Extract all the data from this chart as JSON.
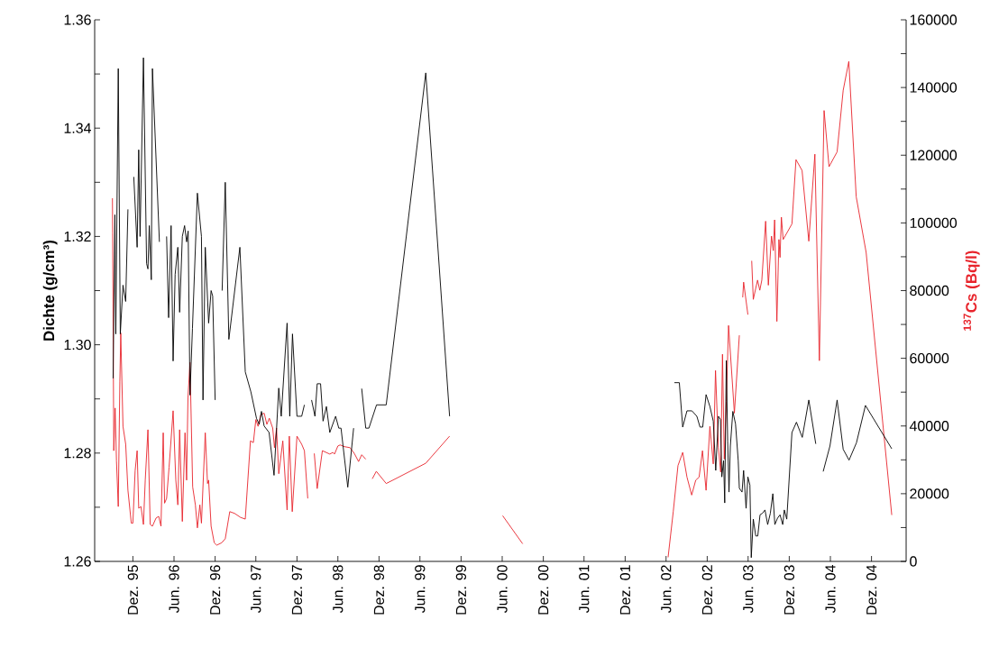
{
  "chart_data": {
    "type": "line",
    "ylabel": "Dichte (g/cm³)",
    "y2label": "$^{137}$Cs (Bq/l)",
    "xlim": [
      "1995-06-14",
      "2005-05-05"
    ],
    "xticks": [
      {
        "value": "1995-12",
        "label": "Dez. 95"
      },
      {
        "value": "1996-06",
        "label": "Jun. 96"
      },
      {
        "value": "1996-12",
        "label": "Dez. 96"
      },
      {
        "value": "1997-06",
        "label": "Jun. 97"
      },
      {
        "value": "1997-12",
        "label": "Dez. 97"
      },
      {
        "value": "1998-06",
        "label": "Jun. 98"
      },
      {
        "value": "1998-12",
        "label": "Dez. 98"
      },
      {
        "value": "1999-06",
        "label": "Jun. 99"
      },
      {
        "value": "1999-12",
        "label": "Dez. 99"
      },
      {
        "value": "2000-06",
        "label": "Jun. 00"
      },
      {
        "value": "2000-12",
        "label": "Dez. 00"
      },
      {
        "value": "2001-06",
        "label": "Jun. 01"
      },
      {
        "value": "2001-12",
        "label": "Dez. 01"
      },
      {
        "value": "2002-06",
        "label": "Jun. 02"
      },
      {
        "value": "2002-12",
        "label": "Dez. 02"
      },
      {
        "value": "2003-06",
        "label": "Jun. 03"
      },
      {
        "value": "2003-12",
        "label": "Dez. 03"
      },
      {
        "value": "2004-06",
        "label": "Jun. 04"
      },
      {
        "value": "2004-12",
        "label": "Dez. 04"
      }
    ],
    "ylim": [
      1.26,
      1.36
    ],
    "yticks": [
      {
        "value": 1.26,
        "label": "1.26"
      },
      {
        "value": 1.27,
        "label": null
      },
      {
        "value": 1.28,
        "label": "1.28"
      },
      {
        "value": 1.29,
        "label": null
      },
      {
        "value": 1.3,
        "label": "1.30"
      },
      {
        "value": 1.31,
        "label": null
      },
      {
        "value": 1.32,
        "label": "1.32"
      },
      {
        "value": 1.33,
        "label": null
      },
      {
        "value": 1.34,
        "label": "1.34"
      },
      {
        "value": 1.35,
        "label": null
      },
      {
        "value": 1.36,
        "label": "1.36"
      }
    ],
    "y2lim": [
      0,
      160000
    ],
    "y2ticks": [
      0,
      {
        "value": 10000,
        "label": null
      },
      20000,
      {
        "value": 30000,
        "label": null
      },
      40000,
      {
        "value": 50000,
        "label": null
      },
      60000,
      {
        "value": 70000,
        "label": null
      },
      80000,
      {
        "value": 90000,
        "label": null
      },
      100000,
      {
        "value": 110000,
        "label": null
      },
      120000,
      {
        "value": 130000,
        "label": null
      },
      140000,
      {
        "value": 150000,
        "label": null
      },
      160000
    ],
    "series": [
      {
        "color": "#000000",
        "x": [
          "1995-09-04",
          "1995-09-12",
          "1995-09-16",
          "1995-09-27",
          "1995-10-06",
          "1995-10-18",
          "1995-10-30",
          "1995-11-09",
          "1995-11-22",
          "1995-12-05",
          "1995-12-20",
          "1995-12-27",
          "1996-01-02",
          "1996-01-17",
          "1996-01-31",
          "1996-02-06",
          "1996-02-12",
          "1996-02-21",
          "1996-02-26",
          "1996-03-28",
          "1996-04-13",
          "1996-04-29",
          "1996-05-08",
          "1996-05-19",
          "1996-05-28",
          "1996-06-06",
          "1996-06-18",
          "1996-06-26",
          "1996-07-08",
          "1996-07-18",
          "1996-07-27",
          "1996-08-03",
          "1996-08-11",
          "1996-08-22",
          "1996-09-13",
          "1996-10-01",
          "1996-10-08",
          "1996-10-18",
          "1996-11-02",
          "1996-11-13",
          "1996-11-20",
          "1996-12-01",
          "1996-12-17",
          "1997-01-02",
          "1997-01-16",
          "1997-02-01",
          "1997-03-22",
          "1997-04-15",
          "1997-05-10",
          "1997-06-04",
          "1997-06-16",
          "1997-06-26",
          "1997-07-08",
          "1997-07-30",
          "1997-08-21",
          "1997-09-11",
          "1997-09-22",
          "1997-10-18",
          "1997-10-30",
          "1997-11-11",
          "1997-12-01",
          "1997-12-22",
          "1998-01-03",
          "1998-01-19",
          "1998-02-04",
          "1998-02-19",
          "1998-03-01",
          "1998-03-16",
          "1998-03-27",
          "1998-04-11",
          "1998-04-26",
          "1998-05-22",
          "1998-06-05",
          "1998-06-15",
          "1998-07-15",
          "1998-08-10",
          "1998-08-26",
          "1998-09-15",
          "1998-10-03",
          "1998-10-17",
          "1998-11-20",
          "1999-01-02",
          "1999-06-27",
          "1999-10-11",
          "2001-01-01",
          "2002-07-08",
          "2002-07-30",
          "2002-08-14",
          "2002-09-02",
          "2002-09-24",
          "2002-10-16",
          "2002-10-30",
          "2002-11-11",
          "2002-11-26",
          "2002-12-13",
          "2002-12-28",
          "2003-01-08",
          "2003-01-20",
          "2003-01-29",
          "2003-02-04",
          "2003-02-12",
          "2003-02-17",
          "2003-02-24",
          "2003-03-02",
          "2003-03-08",
          "2003-03-14",
          "2003-03-25",
          "2003-04-06",
          "2003-04-18",
          "2003-04-23",
          "2003-05-05",
          "2003-05-12",
          "2003-05-23",
          "2003-05-31",
          "2003-06-09",
          "2003-06-15",
          "2003-06-24",
          "2003-07-05",
          "2003-07-14",
          "2003-07-24",
          "2003-08-04",
          "2003-08-15",
          "2003-08-27",
          "2003-09-08",
          "2003-09-19",
          "2003-09-28",
          "2003-10-10",
          "2003-10-21",
          "2003-11-02",
          "2003-11-09",
          "2003-11-20",
          "2003-12-13",
          "2004-01-02",
          "2004-01-28",
          "2004-02-26",
          "2004-03-28",
          "2004-04-13",
          "2004-04-30",
          "2004-05-30",
          "2004-07-01",
          "2004-07-28",
          "2004-08-23",
          "2004-09-25",
          "2004-11-04",
          "2005-03-02"
        ],
        "values": [
          1.2938,
          1.324,
          1.302,
          1.351,
          1.302,
          1.311,
          1.308,
          1.325,
          null,
          1.331,
          1.318,
          1.336,
          1.32,
          1.353,
          1.315,
          1.314,
          1.322,
          1.312,
          1.351,
          1.319,
          null,
          1.32,
          1.305,
          1.322,
          1.297,
          1.313,
          1.318,
          1.306,
          1.32,
          1.322,
          1.319,
          1.321,
          1.2907,
          1.303,
          1.328,
          1.32,
          1.2898,
          1.318,
          1.304,
          1.31,
          1.309,
          1.2898,
          null,
          1.31,
          1.33,
          1.301,
          1.318,
          1.295,
          1.2913,
          1.2864,
          1.2853,
          1.2877,
          1.285,
          1.2838,
          1.2759,
          1.292,
          1.2868,
          1.304,
          1.2868,
          1.302,
          1.2868,
          1.2868,
          1.2889,
          null,
          1.2898,
          1.2868,
          1.2928,
          1.2928,
          1.2859,
          1.2886,
          1.2838,
          1.2868,
          1.2846,
          1.2846,
          1.2737,
          1.2846,
          null,
          1.2919,
          1.2846,
          1.2846,
          1.2889,
          1.2889,
          1.3502,
          1.2868,
          null,
          1.293,
          1.293,
          1.2848,
          1.2878,
          1.2878,
          1.2868,
          1.2848,
          1.2848,
          1.2908,
          1.2886,
          1.2859,
          1.2768,
          1.2868,
          1.2862,
          1.2756,
          1.2786,
          1.2708,
          1.2971,
          1.2822,
          1.2728,
          1.2813,
          1.2877,
          1.2854,
          1.2786,
          1.2735,
          1.2728,
          1.2768,
          1.2698,
          1.2756,
          1.2741,
          1.2607,
          1.2678,
          1.2647,
          1.2647,
          1.2686,
          1.2689,
          1.2695,
          1.2668,
          1.2689,
          1.2725,
          1.2668,
          1.268,
          1.2686,
          1.2668,
          1.2695,
          1.2678,
          1.2838,
          1.2857,
          1.2829,
          1.2898,
          1.2817,
          null,
          1.2766,
          1.2813,
          1.2898,
          1.2807,
          1.2787,
          1.2819,
          1.2888,
          1.2808
        ]
      },
      {
        "color": "#e8242b",
        "axis": "y2",
        "x": [
          "1995-09-01",
          "1995-09-02",
          "1995-09-07",
          "1995-09-13",
          "1995-09-19",
          "1995-09-27",
          "1995-10-04",
          "1995-10-08",
          "1995-10-18",
          "1995-10-30",
          "1995-11-09",
          "1995-11-24",
          "1995-12-01",
          "1995-12-11",
          "1995-12-20",
          "1995-12-27",
          "1996-01-06",
          "1996-01-17",
          "1996-01-25",
          "1996-02-06",
          "1996-02-16",
          "1996-02-26",
          "1996-03-13",
          "1996-03-25",
          "1996-04-04",
          "1996-04-14",
          "1996-04-20",
          "1996-04-29",
          "1996-05-10",
          "1996-05-28",
          "1996-06-09",
          "1996-06-18",
          "1996-06-26",
          "1996-07-08",
          "1996-07-20",
          "1996-07-27",
          "1996-08-02",
          "1996-08-11",
          "1996-08-23",
          "1996-09-04",
          "1996-09-13",
          "1996-09-24",
          "1996-10-01",
          "1996-10-18",
          "1996-10-28",
          "1996-11-02",
          "1996-11-13",
          "1996-11-27",
          "1996-12-08",
          "1996-12-30",
          "1997-01-16",
          "1997-02-05",
          "1997-02-26",
          "1997-03-25",
          "1997-04-15",
          "1997-05-08",
          "1997-05-21",
          "1997-06-01",
          "1997-06-11",
          "1997-06-23",
          "1997-07-08",
          "1997-07-20",
          "1997-07-31",
          "1997-08-15",
          "1997-08-23",
          "1997-09-01",
          "1997-09-11",
          "1997-09-29",
          "1997-10-18",
          "1997-10-28",
          "1997-11-10",
          "1997-12-01",
          "1997-12-22",
          "1998-01-03",
          "1998-01-18",
          "1998-02-03",
          "1998-02-16",
          "1998-03-01",
          "1998-03-24",
          "1998-04-26",
          "1998-05-10",
          "1998-05-17",
          "1998-06-01",
          "1998-06-11",
          "1998-06-30",
          "1998-07-25",
          "1998-08-13",
          "1998-09-01",
          "1998-09-15",
          "1998-10-03",
          "1998-10-16",
          "1998-11-01",
          "1998-11-19",
          "1999-01-02",
          "1999-06-27",
          "1999-10-11",
          "2000-02-06",
          "2000-06-03",
          "2000-08-31",
          "2001-07-02",
          "2002-06-10",
          "2002-07-03",
          "2002-07-24",
          "2002-08-14",
          "2002-09-02",
          "2002-09-23",
          "2002-10-11",
          "2002-10-26",
          "2002-11-10",
          "2002-11-26",
          "2002-12-13",
          "2002-12-28",
          "2003-01-07",
          "2003-01-20",
          "2003-01-30",
          "2003-02-07",
          "2003-02-15",
          "2003-02-24",
          "2003-03-06",
          "2003-04-01",
          "2003-04-23",
          "2003-05-01",
          "2003-05-08",
          "2003-05-12",
          "2003-05-31",
          "2003-06-09",
          "2003-06-17",
          "2003-06-24",
          "2003-07-13",
          "2003-07-23",
          "2003-08-01",
          "2003-08-18",
          "2003-08-30",
          "2003-09-13",
          "2003-09-21",
          "2003-09-27",
          "2003-10-07",
          "2003-10-16",
          "2003-10-21",
          "2003-10-27",
          "2003-11-04",
          "2003-12-13",
          "2003-12-31",
          "2004-01-27",
          "2004-02-26",
          "2004-03-24",
          "2004-04-13",
          "2004-05-04",
          "2004-05-26",
          "2004-07-01",
          "2004-07-28",
          "2004-08-22",
          "2004-09-24",
          "2004-11-07",
          "2005-03-02"
        ],
        "values": [
          107300,
          97100,
          32700,
          45300,
          29700,
          16200,
          53000,
          67500,
          39900,
          34600,
          21000,
          11300,
          11300,
          26800,
          32700,
          15700,
          16200,
          10900,
          24000,
          38900,
          10900,
          10400,
          12800,
          13300,
          10400,
          38000,
          17200,
          18600,
          27800,
          44500,
          24000,
          16700,
          38900,
          11800,
          38000,
          24000,
          48200,
          58800,
          22000,
          16700,
          9900,
          16700,
          11300,
          38000,
          23000,
          24000,
          10400,
          5500,
          4800,
          5500,
          6700,
          14700,
          14200,
          13000,
          12500,
          35600,
          35100,
          41900,
          39900,
          43300,
          43800,
          40500,
          42300,
          39400,
          33600,
          39400,
          25900,
          35600,
          15200,
          37000,
          14700,
          37000,
          34600,
          32700,
          18600,
          null,
          31900,
          21500,
          32700,
          31700,
          32200,
          31700,
          34100,
          34400,
          33900,
          33600,
          31900,
          29500,
          31500,
          30200,
          null,
          24400,
          26600,
          23000,
          29000,
          37000,
          null,
          13500,
          5200,
          null,
          1200,
          14700,
          28300,
          32200,
          24900,
          19600,
          24000,
          24900,
          32700,
          21000,
          39900,
          28800,
          56400,
          33600,
          26400,
          61200,
          30200,
          47200,
          69700,
          43800,
          66800,
          null,
          78000,
          82500,
          72900,
          null,
          88800,
          77400,
          83100,
          80100,
          83100,
          100500,
          81600,
          96100,
          91800,
          100900,
          70900,
          95100,
          89800,
          101700,
          95100,
          99700,
          118700,
          115500,
          94600,
          120300,
          59300,
          133200,
          116600,
          121000,
          139200,
          147700,
          107700,
          91300,
          13700
        ]
      }
    ]
  }
}
